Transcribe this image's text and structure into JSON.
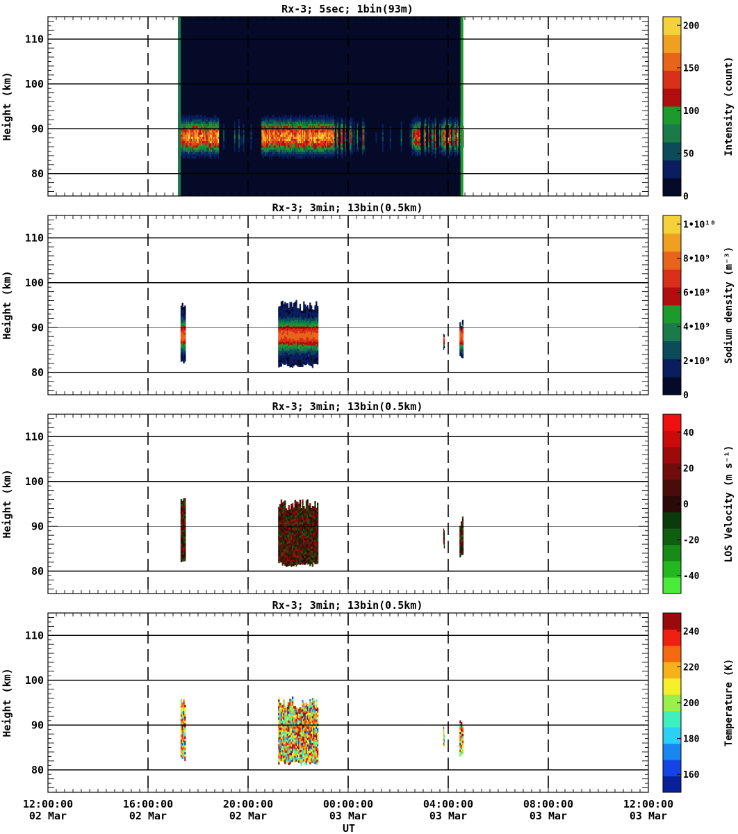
{
  "chart_data": [
    {
      "type": "heatmap",
      "title": "Rx-3;  5sec; 1bin(93m)",
      "ylabel": "Height (km)",
      "ylim": [
        75,
        115
      ],
      "yticks": [
        80,
        90,
        100,
        110
      ],
      "xlim": [
        0,
        24
      ],
      "colorbar": {
        "label": "Intensity (count)",
        "range": [
          0,
          210
        ],
        "ticks": [
          "0",
          "50",
          "100",
          "150",
          "200"
        ],
        "tick_values": [
          0,
          50,
          100,
          150,
          200
        ]
      },
      "data_extent_hours": [
        5.2,
        16.6
      ],
      "layer_km": [
        82,
        95
      ],
      "peak_km": 88
    },
    {
      "type": "heatmap",
      "title": "Rx-3; 3min; 13bin(0.5km)",
      "ylabel": "Height (km)",
      "ylim": [
        75,
        115
      ],
      "yticks": [
        80,
        90,
        100,
        110
      ],
      "xlim": [
        0,
        24
      ],
      "colorbar": {
        "label": "Sodium density (m⁻³)",
        "range": [
          0,
          10500000000.0
        ],
        "ticks": [
          "0",
          "2•10⁹",
          "4•10⁹",
          "6•10⁹",
          "8•10⁹",
          "1•10¹⁰"
        ],
        "tick_values": [
          0,
          2000000000.0,
          4000000000.0,
          6000000000.0,
          8000000000.0,
          10000000000.0
        ]
      },
      "blocks": [
        {
          "start_hour": 5.3,
          "end_hour": 5.5,
          "bottom_km": 82,
          "top_km": 96.5
        },
        {
          "start_hour": 9.2,
          "end_hour": 10.8,
          "bottom_km": 81,
          "top_km": 96
        },
        {
          "start_hour": 15.8,
          "end_hour": 15.85,
          "bottom_km": 85,
          "top_km": 90
        },
        {
          "start_hour": 16.45,
          "end_hour": 16.6,
          "bottom_km": 83,
          "top_km": 92
        }
      ]
    },
    {
      "type": "heatmap",
      "title": "Rx-3; 3min; 13bin(0.5km)",
      "ylabel": "Height (km)",
      "ylim": [
        75,
        115
      ],
      "yticks": [
        80,
        90,
        100,
        110
      ],
      "xlim": [
        0,
        24
      ],
      "colorbar": {
        "label": "LOS Velocity (m s⁻¹)",
        "range": [
          -50,
          50
        ],
        "ticks": [
          "-40",
          "-20",
          "0",
          "20",
          "40"
        ],
        "tick_values": [
          -40,
          -20,
          0,
          20,
          40
        ]
      },
      "blocks": [
        {
          "start_hour": 5.3,
          "end_hour": 5.5,
          "bottom_km": 82,
          "top_km": 96.5
        },
        {
          "start_hour": 9.2,
          "end_hour": 10.8,
          "bottom_km": 81,
          "top_km": 96
        },
        {
          "start_hour": 15.8,
          "end_hour": 15.85,
          "bottom_km": 85,
          "top_km": 90
        },
        {
          "start_hour": 16.45,
          "end_hour": 16.6,
          "bottom_km": 83,
          "top_km": 92
        }
      ]
    },
    {
      "type": "heatmap",
      "title": "Rx-3; 3min; 13bin(0.5km)",
      "ylabel": "Height (km)",
      "ylim": [
        75,
        115
      ],
      "yticks": [
        80,
        90,
        100,
        110
      ],
      "xlim": [
        0,
        24
      ],
      "xlabel": "UT",
      "colorbar": {
        "label": "Temperature (K)",
        "range": [
          150,
          250
        ],
        "ticks": [
          "160",
          "180",
          "200",
          "220",
          "240"
        ],
        "tick_values": [
          160,
          180,
          200,
          220,
          240
        ]
      },
      "blocks": [
        {
          "start_hour": 5.3,
          "end_hour": 5.5,
          "bottom_km": 82,
          "top_km": 96.5
        },
        {
          "start_hour": 9.2,
          "end_hour": 10.8,
          "bottom_km": 81,
          "top_km": 96
        },
        {
          "start_hour": 15.8,
          "end_hour": 15.85,
          "bottom_km": 85,
          "top_km": 90
        },
        {
          "start_hour": 16.45,
          "end_hour": 16.6,
          "bottom_km": 83,
          "top_km": 92
        }
      ]
    }
  ],
  "x_axis": {
    "label": "UT",
    "tick_hours": [
      0,
      4,
      8,
      12,
      16,
      20,
      24
    ],
    "tick_times": [
      "12:00:00",
      "16:00:00",
      "20:00:00",
      "00:00:00",
      "04:00:00",
      "08:00:00",
      "12:00:00"
    ],
    "tick_dates": [
      "02 Mar",
      "02 Mar",
      "02 Mar",
      "03 Mar",
      "03 Mar",
      "03 Mar",
      "03 Mar"
    ]
  },
  "colors": {
    "intensity": [
      "#050a28",
      "#0a1d5e",
      "#0c4b5a",
      "#1a7a4a",
      "#1c9a2c",
      "#b20e0e",
      "#d8301a",
      "#e8641a",
      "#f0a020",
      "#f5d23a"
    ],
    "density": [
      "#050a28",
      "#0a1d5e",
      "#0c4b5a",
      "#1a7a4a",
      "#1c9a2c",
      "#b20e0e",
      "#d8301a",
      "#e8641a",
      "#f0a020",
      "#f5d23a"
    ],
    "velocity": [
      "#4aeb3a",
      "#22b81e",
      "#178a17",
      "#105e10",
      "#0b3a0b",
      "#2a0a06",
      "#4a0c08",
      "#700c0a",
      "#9c0a0a",
      "#cc0a0a",
      "#f01010"
    ],
    "temperature": [
      "#0a1f9a",
      "#1444e6",
      "#1888f0",
      "#2ad0f5",
      "#3ef0c0",
      "#9af04a",
      "#f5f02a",
      "#f5b21a",
      "#f56a10",
      "#f02010",
      "#9a0a0a"
    ]
  }
}
